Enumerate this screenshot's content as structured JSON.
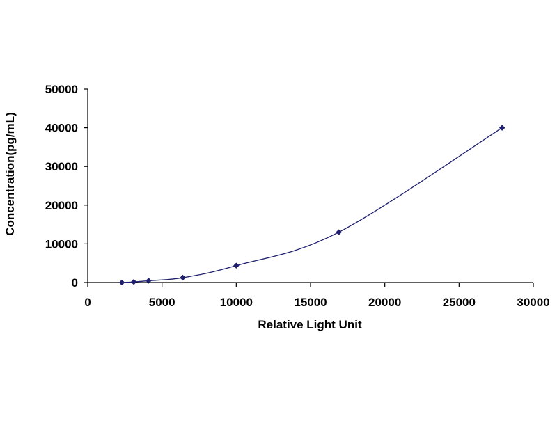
{
  "chart_data": {
    "type": "scatter",
    "title": "",
    "xlabel": "Relative Light Unit",
    "ylabel": "Concentration(pg/mL)",
    "xlim": [
      0,
      30000
    ],
    "ylim": [
      0,
      50000
    ],
    "x_ticks": [
      0,
      5000,
      10000,
      15000,
      20000,
      25000,
      30000
    ],
    "y_ticks": [
      0,
      10000,
      20000,
      30000,
      40000,
      50000
    ],
    "x_tick_labels": [
      "0",
      "5000",
      "10000",
      "15000",
      "20000",
      "25000",
      "30000"
    ],
    "y_tick_labels": [
      "0",
      "10000",
      "20000",
      "30000",
      "40000",
      "50000"
    ],
    "grid": false,
    "legend": "none",
    "marker": "diamond",
    "colors": {
      "marker": "#1f1f6e",
      "line": "#1f1f6e",
      "axis": "#000000"
    },
    "series": [
      {
        "x": [
          2300,
          3100,
          4100,
          6400,
          10000,
          16900,
          27900
        ],
        "y": [
          0,
          156,
          469,
          1250,
          4375,
          13000,
          40000
        ],
        "trendline": "smooth"
      }
    ]
  }
}
